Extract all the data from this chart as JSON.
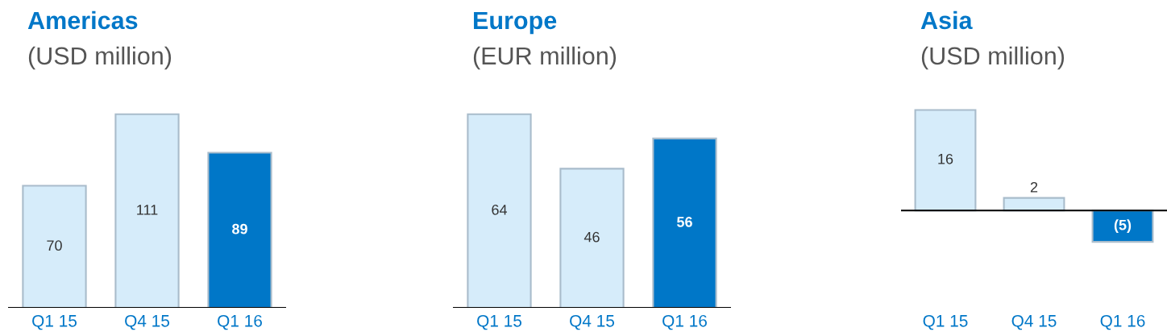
{
  "chart_data": [
    {
      "type": "bar",
      "title": "Americas",
      "subtitle": "(USD million)",
      "categories": [
        "Q1 15",
        "Q4 15",
        "Q1 16"
      ],
      "values": [
        70,
        111,
        89
      ],
      "colors": [
        "#d6ecfa",
        "#d6ecfa",
        "#0077c8"
      ],
      "data_labels": true
    },
    {
      "type": "bar",
      "title": "Europe",
      "subtitle": "(EUR million)",
      "categories": [
        "Q1 15",
        "Q4 15",
        "Q1 16"
      ],
      "values": [
        64,
        46,
        56
      ],
      "colors": [
        "#d6ecfa",
        "#d6ecfa",
        "#0077c8"
      ],
      "data_labels": true
    },
    {
      "type": "bar",
      "title": "Asia",
      "subtitle": "(USD million)",
      "categories": [
        "Q1 15",
        "Q4 15",
        "Q1 16"
      ],
      "values": [
        16,
        2,
        -5
      ],
      "colors": [
        "#d6ecfa",
        "#d6ecfa",
        "#0077c8"
      ],
      "value_labels": [
        "16",
        "2",
        "(5)"
      ]
    }
  ]
}
